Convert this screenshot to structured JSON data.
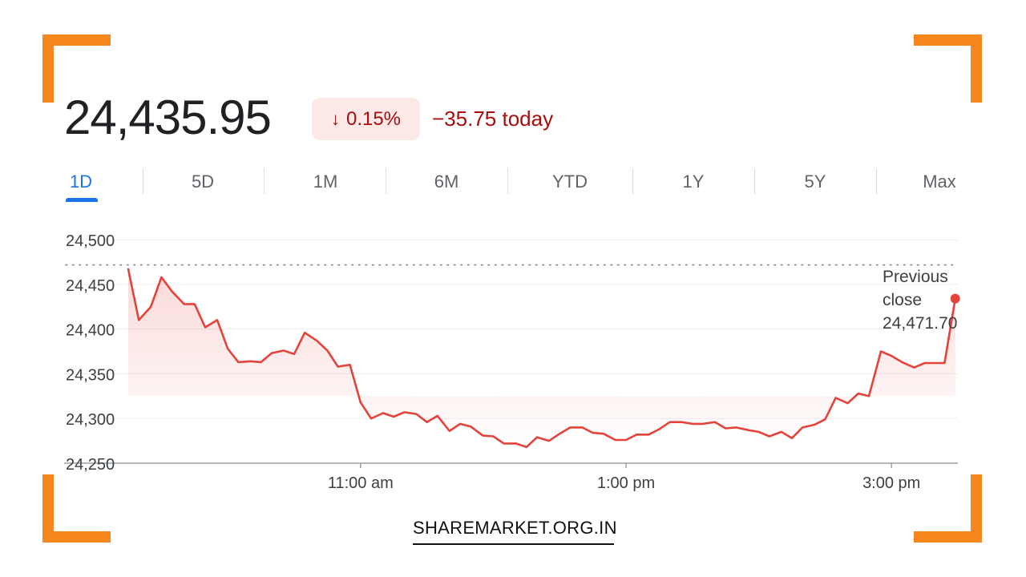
{
  "quote": {
    "price": "24,435.95",
    "percent_change": "0.15%",
    "arrow_glyph": "↓",
    "change_today": "−35.75 today"
  },
  "tabs": [
    {
      "label": "1D",
      "active": true
    },
    {
      "label": "5D",
      "active": false
    },
    {
      "label": "1M",
      "active": false
    },
    {
      "label": "6M",
      "active": false
    },
    {
      "label": "YTD",
      "active": false
    },
    {
      "label": "1Y",
      "active": false
    },
    {
      "label": "5Y",
      "active": false
    },
    {
      "label": "Max",
      "active": false
    }
  ],
  "previous_close": {
    "label_line1": "Previous",
    "label_line2": "close",
    "value_text": "24,471.70"
  },
  "footer": {
    "text": "SHAREMARKET.ORG.IN"
  },
  "colors": {
    "accent": "#f7861f",
    "negative": "#a50e0e",
    "line": "#e3433a",
    "active_tab": "#1a73e8"
  },
  "chart_data": {
    "type": "line",
    "y_tick_labels": [
      "24,250",
      "24,300",
      "24,350",
      "24,400",
      "24,450",
      "24,500"
    ],
    "y_ticks": [
      24250,
      24300,
      24350,
      24400,
      24450,
      24500
    ],
    "ylim": [
      24250,
      24500
    ],
    "x_tick_labels": [
      "11:00 am",
      "1:00 pm",
      "3:00 pm"
    ],
    "x_ticks": [
      11,
      13,
      15
    ],
    "xlim": [
      9.25,
      15.5
    ],
    "previous_close": 24471.7,
    "grid": true,
    "series": [
      {
        "x": [
          9.25,
          9.33,
          9.42,
          9.5,
          9.58,
          9.67,
          9.75,
          9.83,
          9.92,
          10.0,
          10.08,
          10.17,
          10.25,
          10.33,
          10.42,
          10.5,
          10.58,
          10.67,
          10.75,
          10.83,
          10.92,
          11.0,
          11.08,
          11.17,
          11.25,
          11.33,
          11.42,
          11.5,
          11.58,
          11.67,
          11.75,
          11.83,
          11.92,
          12.0,
          12.08,
          12.17,
          12.25,
          12.33,
          12.42,
          12.5,
          12.58,
          12.67,
          12.75,
          12.83,
          12.92,
          13.0,
          13.08,
          13.17,
          13.25,
          13.33,
          13.42,
          13.5,
          13.58,
          13.67,
          13.75,
          13.83,
          13.92,
          14.0,
          14.08,
          14.17,
          14.25,
          14.33,
          14.42,
          14.5,
          14.58,
          14.67,
          14.75,
          14.83,
          14.92,
          15.0,
          15.08,
          15.17,
          15.25,
          15.33,
          15.4,
          15.48
        ],
        "y": [
          24467,
          24410,
          24425,
          24458,
          24442,
          24428,
          24428,
          24402,
          24410,
          24378,
          24363,
          24364,
          24363,
          24373,
          24376,
          24372,
          24396,
          24387,
          24376,
          24358,
          24360,
          24318,
          24300,
          24306,
          24302,
          24307,
          24305,
          24296,
          24303,
          24286,
          24294,
          24291,
          24281,
          24280,
          24272,
          24272,
          24268,
          24279,
          24275,
          24283,
          24290,
          24290,
          24284,
          24283,
          24276,
          24276,
          24282,
          24282,
          24288,
          24296,
          24296,
          24294,
          24294,
          24296,
          24289,
          24290,
          24287,
          24285,
          24280,
          24285,
          24278,
          24290,
          24293,
          24299,
          24323,
          24317,
          24328,
          24325,
          24375,
          24370,
          24363,
          24357,
          24362,
          24362,
          24362,
          24434
        ]
      }
    ]
  }
}
